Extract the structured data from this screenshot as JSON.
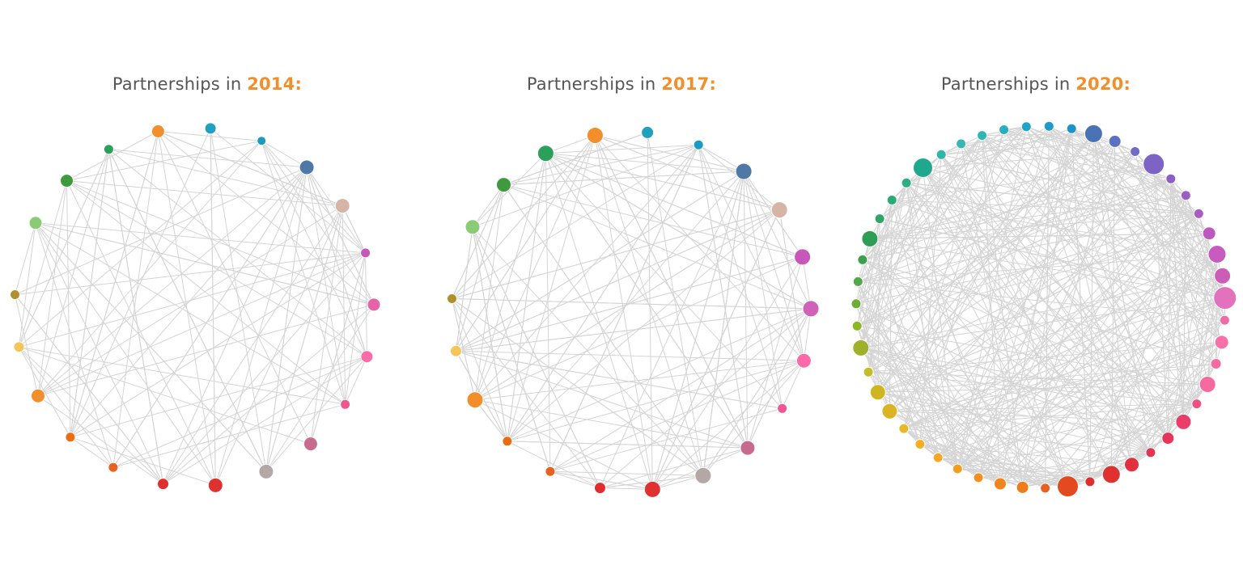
{
  "panels": [
    {
      "title_prefix": "Partnerships in ",
      "title_year": "2014:",
      "nodes": [
        {
          "color": "#8acb76",
          "size": 8
        },
        {
          "color": "#3e9a3d",
          "size": 8
        },
        {
          "color": "#2ba05a",
          "size": 6
        },
        {
          "color": "#f28e2b",
          "size": 8
        },
        {
          "color": "#1fa0bf",
          "size": 7
        },
        {
          "color": "#1b9ac2",
          "size": 5.5
        },
        {
          "color": "#4e79a7",
          "size": 9
        },
        {
          "color": "#d7b5a6",
          "size": 9
        },
        {
          "color": "#c757b8",
          "size": 6
        },
        {
          "color": "#e663a8",
          "size": 8
        },
        {
          "color": "#ff6aa8",
          "size": 7.5
        },
        {
          "color": "#f0568f",
          "size": 6
        },
        {
          "color": "#c66a8e",
          "size": 8.5
        },
        {
          "color": "#b3a8a6",
          "size": 9
        },
        {
          "color": "#e03131",
          "size": 9
        },
        {
          "color": "#e12d2d",
          "size": 7
        },
        {
          "color": "#e8611e",
          "size": 6
        },
        {
          "color": "#ec6c12",
          "size": 6
        },
        {
          "color": "#f28e2b",
          "size": 8.5
        },
        {
          "color": "#f5c55a",
          "size": 6.5
        },
        {
          "color": "#b0902c",
          "size": 6
        }
      ],
      "edge_count": 110,
      "edge_seed": 14
    },
    {
      "title_prefix": "Partnerships in ",
      "title_year": "2017:",
      "nodes": [
        {
          "color": "#8acb76",
          "size": 9
        },
        {
          "color": "#3e9a3d",
          "size": 9
        },
        {
          "color": "#2ba05a",
          "size": 10
        },
        {
          "color": "#f28e2b",
          "size": 10
        },
        {
          "color": "#1fa0bf",
          "size": 7.5
        },
        {
          "color": "#1b9ac2",
          "size": 6
        },
        {
          "color": "#4e79a7",
          "size": 10
        },
        {
          "color": "#d7b5a6",
          "size": 10
        },
        {
          "color": "#c757b8",
          "size": 10
        },
        {
          "color": "#d061b8",
          "size": 10
        },
        {
          "color": "#ff6aa8",
          "size": 9
        },
        {
          "color": "#f0568f",
          "size": 6
        },
        {
          "color": "#c66a8e",
          "size": 9
        },
        {
          "color": "#b3a8a6",
          "size": 10
        },
        {
          "color": "#e03131",
          "size": 10
        },
        {
          "color": "#e12d2d",
          "size": 7
        },
        {
          "color": "#e8611e",
          "size": 6
        },
        {
          "color": "#ec6c12",
          "size": 6
        },
        {
          "color": "#f28e2b",
          "size": 10
        },
        {
          "color": "#f5c55a",
          "size": 7
        },
        {
          "color": "#b0902c",
          "size": 6
        }
      ],
      "edge_count": 160,
      "edge_seed": 17
    },
    {
      "title_prefix": "Partnerships in ",
      "title_year": "2020:",
      "nodes": [
        {
          "color": "#9fb12a",
          "size": 10
        },
        {
          "color": "#8bb626",
          "size": 6
        },
        {
          "color": "#6fae35",
          "size": 6
        },
        {
          "color": "#52a84a",
          "size": 6
        },
        {
          "color": "#3c9f4a",
          "size": 6
        },
        {
          "color": "#2e9e55",
          "size": 10
        },
        {
          "color": "#2fa56a",
          "size": 6
        },
        {
          "color": "#2baa77",
          "size": 6
        },
        {
          "color": "#2bae84",
          "size": 6
        },
        {
          "color": "#20a88e",
          "size": 12
        },
        {
          "color": "#30b5a8",
          "size": 6
        },
        {
          "color": "#36b8b0",
          "size": 6
        },
        {
          "color": "#30b5b5",
          "size": 6
        },
        {
          "color": "#25afc0",
          "size": 6
        },
        {
          "color": "#1fa5c5",
          "size": 6
        },
        {
          "color": "#1e9bc9",
          "size": 6
        },
        {
          "color": "#1b93c9",
          "size": 6
        },
        {
          "color": "#4a73b6",
          "size": 11
        },
        {
          "color": "#5a72bf",
          "size": 7.5
        },
        {
          "color": "#6f6bc6",
          "size": 6
        },
        {
          "color": "#7d64c4",
          "size": 13
        },
        {
          "color": "#8d5fc4",
          "size": 6
        },
        {
          "color": "#9b5ec3",
          "size": 6
        },
        {
          "color": "#a85bc0",
          "size": 6
        },
        {
          "color": "#bc58c0",
          "size": 8
        },
        {
          "color": "#c75bc0",
          "size": 11
        },
        {
          "color": "#cc5db7",
          "size": 10
        },
        {
          "color": "#e372bd",
          "size": 14
        },
        {
          "color": "#f06aa8",
          "size": 6
        },
        {
          "color": "#f572a8",
          "size": 8.5
        },
        {
          "color": "#f76aa0",
          "size": 6.5
        },
        {
          "color": "#f66aa0",
          "size": 10
        },
        {
          "color": "#f0507f",
          "size": 6
        },
        {
          "color": "#ea3d6a",
          "size": 9.5
        },
        {
          "color": "#e63559",
          "size": 7.5
        },
        {
          "color": "#e63454",
          "size": 6
        },
        {
          "color": "#e3303e",
          "size": 9
        },
        {
          "color": "#e03131",
          "size": 11
        },
        {
          "color": "#e12d2d",
          "size": 6
        },
        {
          "color": "#e44a20",
          "size": 13
        },
        {
          "color": "#e8611e",
          "size": 6
        },
        {
          "color": "#ef7c1a",
          "size": 7.5
        },
        {
          "color": "#f0841d",
          "size": 7.5
        },
        {
          "color": "#f39020",
          "size": 6
        },
        {
          "color": "#f39e22",
          "size": 6
        },
        {
          "color": "#f5a625",
          "size": 6
        },
        {
          "color": "#f4ae25",
          "size": 6
        },
        {
          "color": "#e7b928",
          "size": 6
        },
        {
          "color": "#dcb323",
          "size": 9.5
        },
        {
          "color": "#cfb61f",
          "size": 9.5
        },
        {
          "color": "#c6bc2a",
          "size": 6
        }
      ],
      "edge_count": 420,
      "edge_seed": 20
    }
  ]
}
